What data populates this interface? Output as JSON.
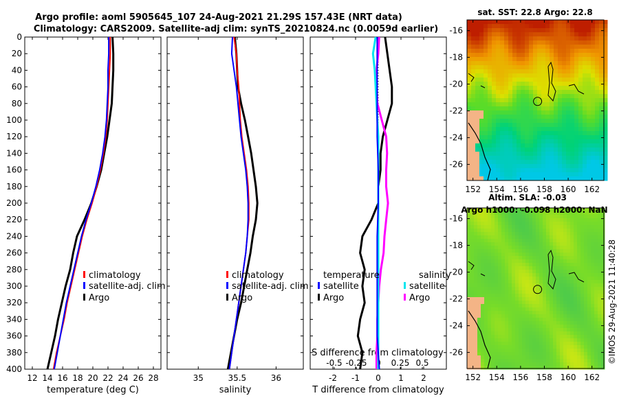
{
  "header": {
    "title_line1": "Argo profile: aoml 5905645_107 24-Aug-2021 21.29S 157.43E (NRT data)",
    "title_line2": "Climatology: CARS2009. Satellite-adj clim: synTS_20210824.nc (0.0059d earlier)"
  },
  "credit": "©IMOS 29-Aug-2021 11:40:28",
  "colors": {
    "climatology": "#ff0000",
    "satellite": "#0000ff",
    "argo": "#000000",
    "salinity_satellite": "#00e5ee",
    "salinity_argo": "#ff00ff",
    "land": "#f4b486"
  },
  "chart_data": [
    {
      "id": "temperature",
      "type": "line",
      "xlabel": "temperature (deg C)",
      "ylabel": "",
      "xlim": [
        11,
        29
      ],
      "ylim": [
        400,
        0
      ],
      "xticks": [
        12,
        14,
        16,
        18,
        20,
        22,
        24,
        26,
        28
      ],
      "yticks": [
        0,
        20,
        40,
        60,
        80,
        100,
        120,
        140,
        160,
        180,
        200,
        220,
        240,
        260,
        280,
        300,
        320,
        340,
        360,
        380,
        400
      ],
      "legend": [
        "climatology",
        "satellite-adj. clim",
        "Argo"
      ],
      "series": [
        {
          "name": "climatology",
          "depth": [
            0,
            20,
            40,
            60,
            80,
            100,
            120,
            140,
            160,
            180,
            200,
            220,
            240,
            260,
            280,
            300,
            320,
            340,
            360,
            380,
            400
          ],
          "values": [
            22.3,
            22.3,
            22.2,
            22.1,
            22.0,
            21.9,
            21.7,
            21.4,
            21.0,
            20.5,
            19.9,
            19.2,
            18.6,
            18.1,
            17.6,
            17.1,
            16.6,
            16.2,
            15.7,
            15.2,
            14.8
          ]
        },
        {
          "name": "satellite-adj. clim",
          "depth": [
            0,
            20,
            40,
            60,
            80,
            100,
            120,
            140,
            160,
            180,
            200,
            220,
            240,
            260,
            280,
            300,
            320,
            340,
            360,
            380,
            400
          ],
          "values": [
            22.1,
            22.1,
            22.0,
            22.0,
            21.9,
            21.8,
            21.6,
            21.3,
            20.9,
            20.4,
            19.8,
            19.1,
            18.5,
            18.0,
            17.5,
            17.0,
            16.5,
            16.1,
            15.7,
            15.3,
            14.9
          ]
        },
        {
          "name": "Argo",
          "depth": [
            0,
            20,
            40,
            60,
            80,
            100,
            120,
            140,
            160,
            180,
            200,
            220,
            240,
            260,
            280,
            300,
            320,
            340,
            360,
            380,
            400
          ],
          "values": [
            22.6,
            22.7,
            22.7,
            22.6,
            22.5,
            22.2,
            21.9,
            21.5,
            21.1,
            20.5,
            19.8,
            18.9,
            17.9,
            17.4,
            17.0,
            16.4,
            15.9,
            15.4,
            15.0,
            14.5,
            14.0
          ]
        }
      ]
    },
    {
      "id": "salinity",
      "type": "line",
      "xlabel": "salinity",
      "ylabel": "",
      "xlim": [
        34.6,
        36.35
      ],
      "ylim": [
        400,
        0
      ],
      "xticks": [
        35,
        35.5,
        36
      ],
      "legend": [
        "climatology",
        "satellite-adj. clim",
        "Argo"
      ],
      "series": [
        {
          "name": "climatology",
          "depth": [
            0,
            20,
            40,
            60,
            80,
            100,
            120,
            140,
            160,
            180,
            200,
            220,
            240,
            260,
            280,
            300,
            320,
            340,
            360,
            380,
            400
          ],
          "values": [
            35.46,
            35.49,
            35.5,
            35.52,
            35.53,
            35.54,
            35.56,
            35.59,
            35.62,
            35.64,
            35.65,
            35.65,
            35.63,
            35.61,
            35.58,
            35.55,
            35.52,
            35.49,
            35.46,
            35.43,
            35.4
          ]
        },
        {
          "name": "satellite-adj. clim",
          "depth": [
            0,
            20,
            40,
            60,
            80,
            100,
            120,
            140,
            160,
            180,
            200,
            220,
            240,
            260,
            280,
            300,
            320,
            340,
            360,
            380,
            400
          ],
          "values": [
            35.44,
            35.43,
            35.46,
            35.49,
            35.51,
            35.53,
            35.55,
            35.58,
            35.61,
            35.63,
            35.64,
            35.64,
            35.63,
            35.61,
            35.58,
            35.55,
            35.52,
            35.49,
            35.46,
            35.43,
            35.4
          ]
        },
        {
          "name": "Argo",
          "depth": [
            0,
            20,
            40,
            60,
            80,
            100,
            120,
            140,
            160,
            180,
            200,
            220,
            240,
            260,
            280,
            300,
            320,
            340,
            360,
            380,
            400
          ],
          "values": [
            35.47,
            35.49,
            35.5,
            35.51,
            35.55,
            35.6,
            35.64,
            35.68,
            35.71,
            35.74,
            35.76,
            35.74,
            35.7,
            35.67,
            35.63,
            35.59,
            35.55,
            35.5,
            35.46,
            35.42,
            35.38
          ]
        }
      ]
    },
    {
      "id": "differences",
      "type": "line",
      "xlabel": "T difference from climatology",
      "xlabel_top": "S difference from climatology",
      "xlim": [
        -3,
        3
      ],
      "ylim": [
        400,
        0
      ],
      "xticks": [
        -2,
        -1,
        0,
        1,
        2
      ],
      "xtick_labels": [
        "-2",
        "-1",
        "0",
        "1",
        "2"
      ],
      "s_ticks": [
        -0.5,
        -0.25,
        0,
        0.25,
        0.5
      ],
      "s_tick_labels": [
        "-0.5",
        "-0.25",
        "0",
        "0.25",
        "0.5"
      ],
      "legend_left_title": "temperature",
      "legend_right_title": "salinity",
      "legend_left": [
        "satellite",
        "Argo"
      ],
      "legend_right": [
        "satellite",
        "Argo"
      ],
      "series": [
        {
          "name": "T satellite",
          "depth": [
            0,
            40,
            80,
            120,
            160,
            200,
            240,
            280,
            320,
            360,
            400
          ],
          "values": [
            -0.05,
            -0.05,
            -0.05,
            -0.05,
            0.0,
            0.0,
            -0.05,
            -0.05,
            -0.05,
            -0.05,
            0.05
          ]
        },
        {
          "name": "T Argo",
          "depth": [
            0,
            20,
            40,
            60,
            80,
            100,
            120,
            140,
            160,
            180,
            200,
            220,
            240,
            260,
            280,
            300,
            320,
            340,
            360,
            380,
            400
          ],
          "values": [
            0.3,
            0.4,
            0.5,
            0.6,
            0.6,
            0.4,
            0.2,
            0.1,
            0.1,
            0.0,
            0.0,
            -0.3,
            -0.7,
            -0.8,
            -0.6,
            -0.7,
            -0.6,
            -0.8,
            -0.9,
            -0.7,
            -0.8
          ]
        },
        {
          "name": "S satellite",
          "depth": [
            0,
            20,
            40,
            60,
            80,
            100,
            120,
            160,
            200,
            240,
            280,
            320,
            360,
            400
          ],
          "values": [
            -0.03,
            -0.06,
            -0.04,
            -0.03,
            -0.02,
            -0.01,
            0.0,
            0.0,
            0.0,
            0.0,
            0.0,
            0.0,
            0.0,
            0.0
          ]
        },
        {
          "name": "S Argo",
          "depth": [
            0,
            20,
            40,
            60,
            80,
            100,
            120,
            140,
            160,
            180,
            200,
            220,
            240,
            260,
            280,
            300,
            320,
            340,
            360,
            380,
            400
          ],
          "values": [
            0.01,
            0.0,
            -0.02,
            -0.02,
            -0.01,
            0.04,
            0.09,
            0.1,
            0.09,
            0.09,
            0.11,
            0.09,
            0.07,
            0.06,
            0.03,
            0.01,
            0.0,
            -0.01,
            -0.01,
            -0.02,
            -0.02
          ]
        }
      ]
    },
    {
      "id": "sst_map",
      "type": "heatmap",
      "title": "sat. SST: 22.8 Argo: 22.8",
      "xticks": [
        152,
        154,
        156,
        158,
        160,
        162
      ],
      "yticks": [
        -16,
        -18,
        -20,
        -22,
        -24,
        -26
      ],
      "xlim": [
        151.5,
        163
      ],
      "ylim": [
        -27.2,
        -15.2
      ]
    },
    {
      "id": "sla_map",
      "type": "heatmap",
      "title": "Altim. SLA: -0.03",
      "subtitle": "Argo h1000: -0.098 h2000: NaN",
      "xticks": [
        152,
        154,
        156,
        158,
        160,
        162
      ],
      "yticks": [
        -16,
        -18,
        -20,
        -22,
        -24,
        -26
      ],
      "xlim": [
        151.5,
        163
      ],
      "ylim": [
        -27.2,
        -15.2
      ]
    }
  ]
}
